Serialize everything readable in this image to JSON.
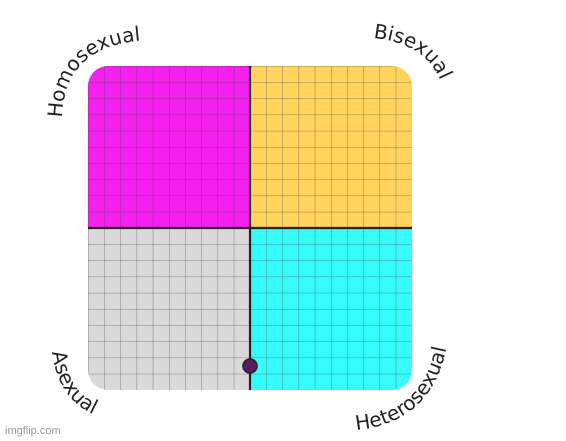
{
  "labels": {
    "top_left": "Homosexual",
    "top_right": "Bisexual",
    "bottom_left": "Asexual",
    "bottom_right": "Heterosexual"
  },
  "watermark": "imgflip.com"
}
